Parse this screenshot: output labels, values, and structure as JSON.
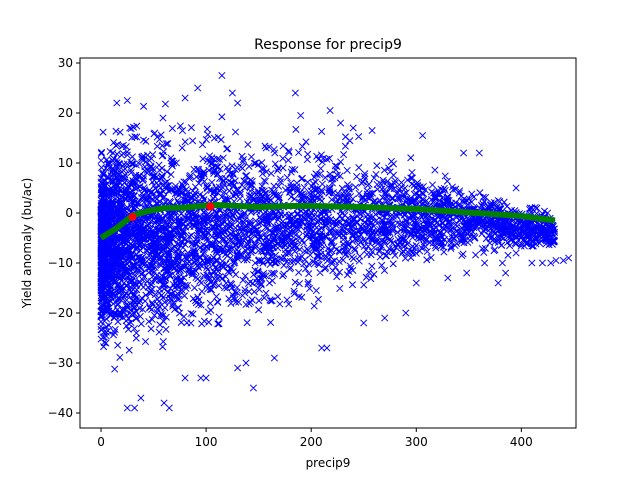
{
  "chart_data": {
    "type": "scatter",
    "title": "Response for precip9",
    "xlabel": "precip9",
    "ylabel": "Yield anomaly (bu/ac)",
    "xlim": [
      -20,
      452
    ],
    "ylim": [
      -43,
      31
    ],
    "xticks": [
      0,
      100,
      200,
      300,
      400
    ],
    "yticks": [
      -40,
      -30,
      -20,
      -10,
      0,
      10,
      20,
      30
    ],
    "grid": false,
    "legend": "none",
    "scatter_series": {
      "marker": "x",
      "color": "#0000ff",
      "envelope": [
        {
          "x": 0,
          "ymin": -30,
          "ymax": 16
        },
        {
          "x": 10,
          "ymin": -34,
          "ymax": 20
        },
        {
          "x": 30,
          "ymin": -30,
          "ymax": 22
        },
        {
          "x": 60,
          "ymin": -30,
          "ymax": 22
        },
        {
          "x": 100,
          "ymin": -28,
          "ymax": 21
        },
        {
          "x": 150,
          "ymin": -25,
          "ymax": 20
        },
        {
          "x": 200,
          "ymin": -22,
          "ymax": 18
        },
        {
          "x": 250,
          "ymin": -17,
          "ymax": 15
        },
        {
          "x": 300,
          "ymin": -13,
          "ymax": 12
        },
        {
          "x": 350,
          "ymin": -10,
          "ymax": 8
        },
        {
          "x": 430,
          "ymin": -9,
          "ymax": 1
        }
      ],
      "outliers": [
        [
          15,
          22
        ],
        [
          25,
          22.5
        ],
        [
          80,
          23
        ],
        [
          92,
          25
        ],
        [
          115,
          27.5
        ],
        [
          125,
          24
        ],
        [
          130,
          22
        ],
        [
          185,
          24
        ],
        [
          190,
          19.5
        ],
        [
          218,
          20.5
        ],
        [
          228,
          18
        ],
        [
          240,
          17
        ],
        [
          258,
          16.5
        ],
        [
          306,
          15.5
        ],
        [
          345,
          12
        ],
        [
          360,
          12
        ],
        [
          395,
          5
        ],
        [
          410,
          1
        ],
        [
          425,
          0
        ],
        [
          25,
          -39
        ],
        [
          32,
          -39
        ],
        [
          38,
          -37
        ],
        [
          60,
          -38
        ],
        [
          65,
          -39
        ],
        [
          80,
          -33
        ],
        [
          95,
          -33
        ],
        [
          100,
          -33
        ],
        [
          130,
          -31
        ],
        [
          138,
          -30
        ],
        [
          145,
          -35
        ],
        [
          165,
          -29
        ],
        [
          210,
          -27
        ],
        [
          215,
          -27
        ],
        [
          250,
          -22
        ],
        [
          270,
          -21
        ],
        [
          290,
          -20
        ],
        [
          300,
          -14
        ],
        [
          330,
          -13
        ],
        [
          348,
          -12
        ],
        [
          378,
          -14
        ],
        [
          382,
          -10
        ],
        [
          395,
          -8
        ],
        [
          420,
          -10
        ],
        [
          428,
          -10
        ],
        [
          433,
          -9.5
        ],
        [
          440,
          -9.5
        ],
        [
          445,
          -9
        ],
        [
          365,
          -10
        ],
        [
          385,
          -12
        ],
        [
          410,
          -10
        ]
      ]
    },
    "series": [
      {
        "type": "line",
        "color": "#008000",
        "x": [
          0,
          15,
          30,
          45,
          60,
          80,
          100,
          110,
          130,
          150,
          180,
          200,
          250,
          300,
          350,
          400,
          432
        ],
        "y": [
          -5,
          -3,
          -0.5,
          0.4,
          1.0,
          1.1,
          1.5,
          1.6,
          1.4,
          1.2,
          1.4,
          1.4,
          1.2,
          0.8,
          0.1,
          -0.6,
          -1.5
        ]
      }
    ],
    "highlighted_points": {
      "color": "#ff0000",
      "points": [
        [
          30,
          -0.8
        ],
        [
          104,
          1.3
        ]
      ]
    }
  }
}
